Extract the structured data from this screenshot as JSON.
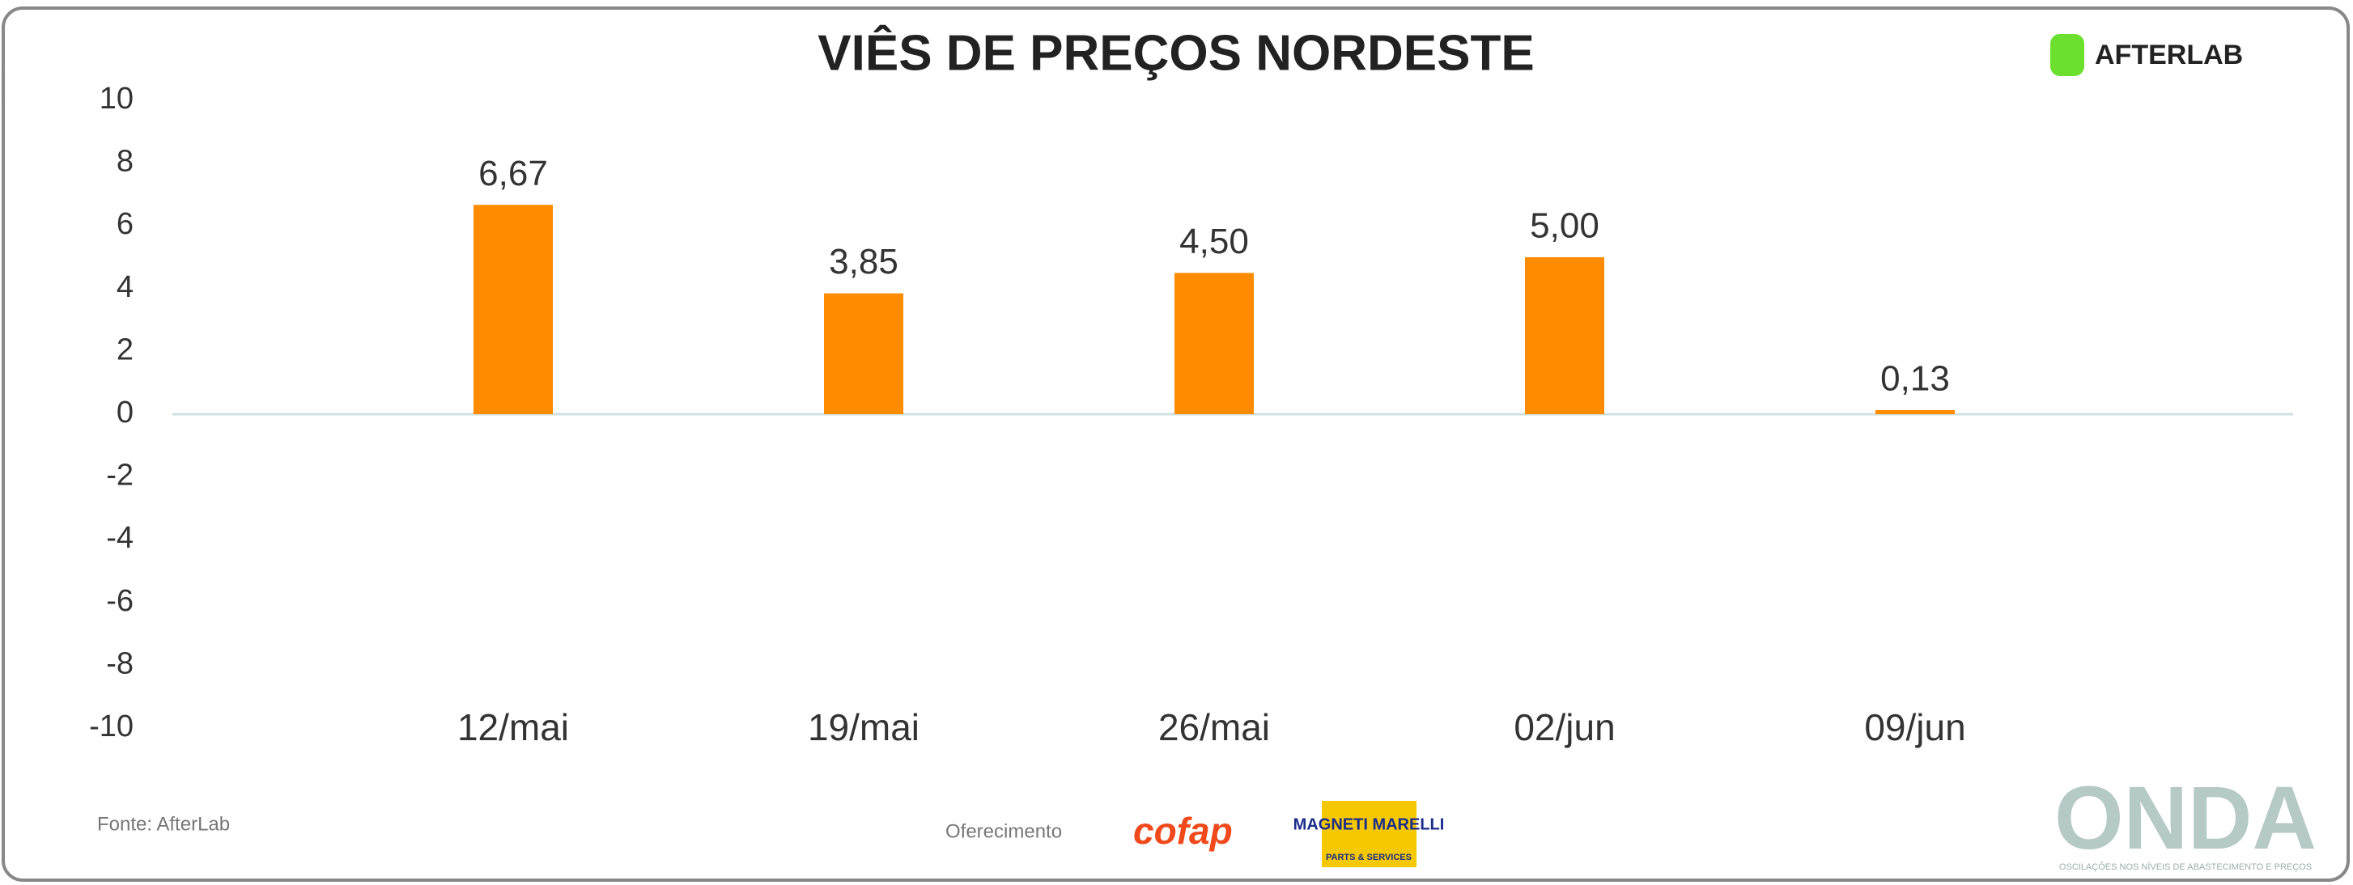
{
  "chart_data": {
    "type": "bar",
    "title": "VIÊS DE PREÇOS NORDESTE",
    "categories": [
      "12/mai",
      "19/mai",
      "26/mai",
      "02/jun",
      "09/jun"
    ],
    "values": [
      6.67,
      3.85,
      4.5,
      5.0,
      0.13
    ],
    "value_labels": [
      "6,67",
      "3,85",
      "4,50",
      "5,00",
      "0,13"
    ],
    "color": "#ff8c00",
    "ylim": [
      -10,
      10
    ],
    "yticks": [
      -10,
      -8,
      -6,
      -4,
      -2,
      0,
      2,
      4,
      6,
      8,
      10
    ]
  },
  "source": "Fonte: AfterLab",
  "sponsor_label": "Oferecimento",
  "sponsors": [
    "cofap",
    "MAGNETI MARELLI",
    "PARTS & SERVICES"
  ],
  "brand": "AFTERLAB",
  "onda": {
    "name": "ONDA",
    "tagline": "OSCILAÇÕES NOS NÍVEIS DE ABASTECIMENTO E PREÇOS"
  }
}
